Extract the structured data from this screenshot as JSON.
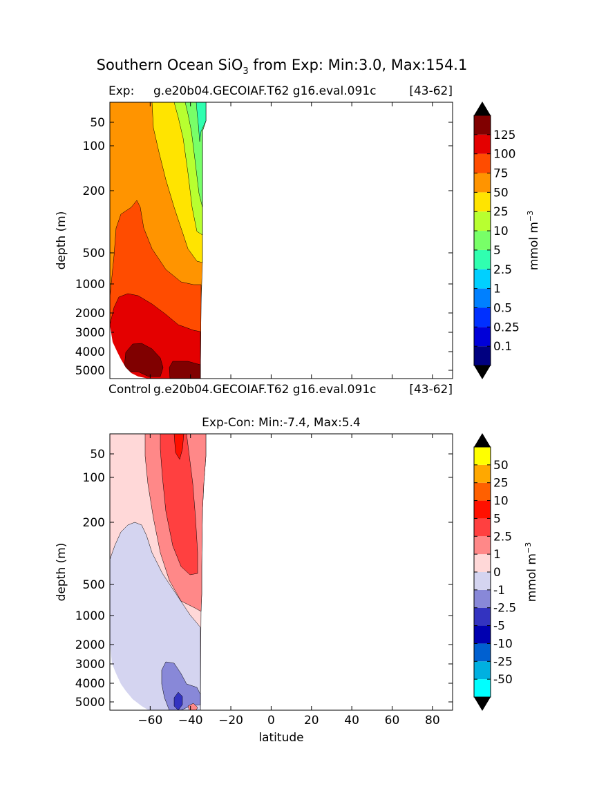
{
  "figure": {
    "suptitle_pre": "Southern Ocean SiO",
    "suptitle_sub": "3",
    "suptitle_post": " from Exp: Min:3.0, Max:154.1"
  },
  "chart_data": [
    {
      "type": "heatmap",
      "title_left": "Exp:",
      "title_center": "g.e20b04.GECOIAF.T62 g16.eval.091c",
      "title_right": "[43-62]",
      "ylabel": "depth (m)",
      "xlabel": "",
      "y_scale": "log-like depth",
      "y_ticks": [
        "50",
        "100",
        "200",
        "500",
        "1000",
        "2000",
        "3000",
        "4000",
        "5000"
      ],
      "x_ticks": [],
      "xlim": [
        -80,
        90
      ],
      "data_lat_range": [
        -80,
        -34
      ],
      "colorbar": {
        "label": "mmol m",
        "label_sup": "−3",
        "tick_labels": [
          "0.1",
          "0.25",
          "0.5",
          "1",
          "2.5",
          "5",
          "10",
          "25",
          "50",
          "75",
          "100",
          "125"
        ],
        "colors": [
          "#000080",
          "#0000d8",
          "#0030ff",
          "#0080ff",
          "#00d0ff",
          "#30ffb0",
          "#78ff68",
          "#b8ff30",
          "#ffe400",
          "#ff9400",
          "#ff4c00",
          "#e40000",
          "#800000"
        ],
        "extend_low": "#000000",
        "extend_high": "#000000"
      }
    },
    {
      "type": "heatmap",
      "title_left": "Control",
      "title_center": "g.e20b04.GECOIAF.T62 g16.eval.091c",
      "title_right": "[43-62]",
      "title2": "Exp-Con: Min:-7.4, Max:5.4",
      "ylabel": "depth (m)",
      "xlabel": "latitude",
      "y_ticks": [
        "50",
        "100",
        "200",
        "500",
        "1000",
        "2000",
        "3000",
        "4000",
        "5000"
      ],
      "x_ticks": [
        "−60",
        "−40",
        "−20",
        "0",
        "20",
        "40",
        "60",
        "80"
      ],
      "xlim": [
        -80,
        90
      ],
      "data_lat_range": [
        -80,
        -34
      ],
      "colorbar": {
        "label": "mmol m",
        "label_sup": "−3",
        "tick_labels": [
          "-50",
          "-25",
          "-10",
          "-5",
          "-2.5",
          "-1",
          "0",
          "1",
          "2.5",
          "5",
          "10",
          "25",
          "50"
        ],
        "colors": [
          "#00ffff",
          "#00b0e0",
          "#0060d0",
          "#0000b0",
          "#3333c0",
          "#8888d8",
          "#d4d4f0",
          "#ffd8d8",
          "#ff8888",
          "#ff4040",
          "#ff1000",
          "#ff6000",
          "#ffa800",
          "#ffff00"
        ],
        "extend_low": "#000000",
        "extend_high": "#000000"
      }
    }
  ]
}
